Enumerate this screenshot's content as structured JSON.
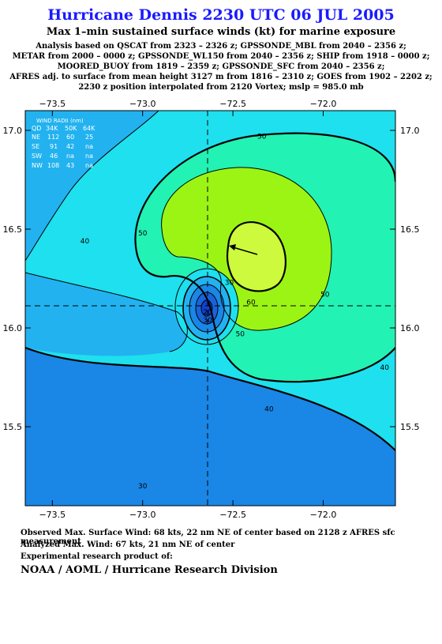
{
  "header": {
    "title": "Hurricane Dennis 2230 UTC 06 JUL 2005",
    "subtitle": "Max 1–min sustained surface winds (kt) for marine exposure",
    "analysis_lines": [
      "Analysis based on  QSCAT from 2323 – 2326 z;  GPSSONDE_MBL from 2040 – 2356 z;",
      "METAR from 2000 – 0000 z;  GPSSONDE_WL150 from 2040 – 2356 z;  SHIP from 1918 – 0000 z;",
      "MOORED_BUOY from 1819 – 2359 z;  GPSSONDE_SFC from 2040 – 2356 z;",
      "AFRES adj. to surface from mean height 3127 m from 1816 – 2310 z;  GOES from 1902 – 2202 z;",
      "2230 z position interpolated from 2120 Vortex; mslp = 985.0 mb"
    ]
  },
  "wind_radii": {
    "title": "WIND RADII (nm)",
    "columns": [
      "QD",
      "34K",
      "50K",
      "64K"
    ],
    "rows": [
      [
        "NE",
        "112",
        "60",
        "25"
      ],
      [
        "SE",
        "91",
        "42",
        "na"
      ],
      [
        "SW",
        "46",
        "na",
        "na"
      ],
      [
        "NW",
        "108",
        "43",
        "na"
      ]
    ]
  },
  "chart_data": {
    "type": "contour",
    "title": "Max 1–min sustained surface winds (kt) for marine exposure",
    "xlabel": "",
    "ylabel": "",
    "xlim": [
      -73.65,
      -71.6
    ],
    "ylim": [
      15.1,
      17.1
    ],
    "x_ticks": [
      -73.5,
      -73.0,
      -72.5,
      -72.0
    ],
    "x_tick_labels": [
      "−73.5",
      "−73.0",
      "−72.5",
      "−72.0"
    ],
    "y_ticks": [
      15.5,
      16.0,
      16.5,
      17.0
    ],
    "y_tick_labels": [
      "15.5",
      "16.0",
      "16.5",
      "17.0"
    ],
    "storm_center": {
      "lon": -72.6,
      "lat": 16.1
    },
    "max_wind_location": {
      "lon": -72.38,
      "lat": 16.32
    },
    "contour_labels": [
      {
        "text": "50",
        "lon": -72.34,
        "lat": 16.97
      },
      {
        "text": "50",
        "lon": -73.0,
        "lat": 16.48
      },
      {
        "text": "50",
        "lon": -71.99,
        "lat": 16.17
      },
      {
        "text": "50",
        "lon": -72.46,
        "lat": 15.97
      },
      {
        "text": "60",
        "lon": -72.4,
        "lat": 16.13
      },
      {
        "text": "40",
        "lon": -73.32,
        "lat": 16.44
      },
      {
        "text": "40",
        "lon": -71.66,
        "lat": 15.8
      },
      {
        "text": "40",
        "lon": -72.3,
        "lat": 15.59
      },
      {
        "text": "30",
        "lon": -72.52,
        "lat": 16.23
      },
      {
        "text": "20",
        "lon": -72.64,
        "lat": 16.08
      },
      {
        "text": "30",
        "lon": -72.64,
        "lat": 16.04
      },
      {
        "text": "30",
        "lon": -73.0,
        "lat": 15.2
      }
    ],
    "colors": {
      "ocean_low": "#1a86e6",
      "band_30": "#22b2f0",
      "band_40": "#1ee0ee",
      "band_50": "#22f2b4",
      "band_60": "#9cf414",
      "band_70": "#cdfa3c",
      "center_dark": "#1040d0"
    }
  },
  "footer": {
    "observed": "Observed Max. Surface Wind: 68 kts, 22 nm NE of center based on 2128 z AFRES sfc measurement",
    "analyzed": "Analyzed Max. Wind: 67 kts, 21 nm NE of center",
    "experimental": "Experimental research product of:",
    "credit": "NOAA / AOML / Hurricane Research Division"
  }
}
